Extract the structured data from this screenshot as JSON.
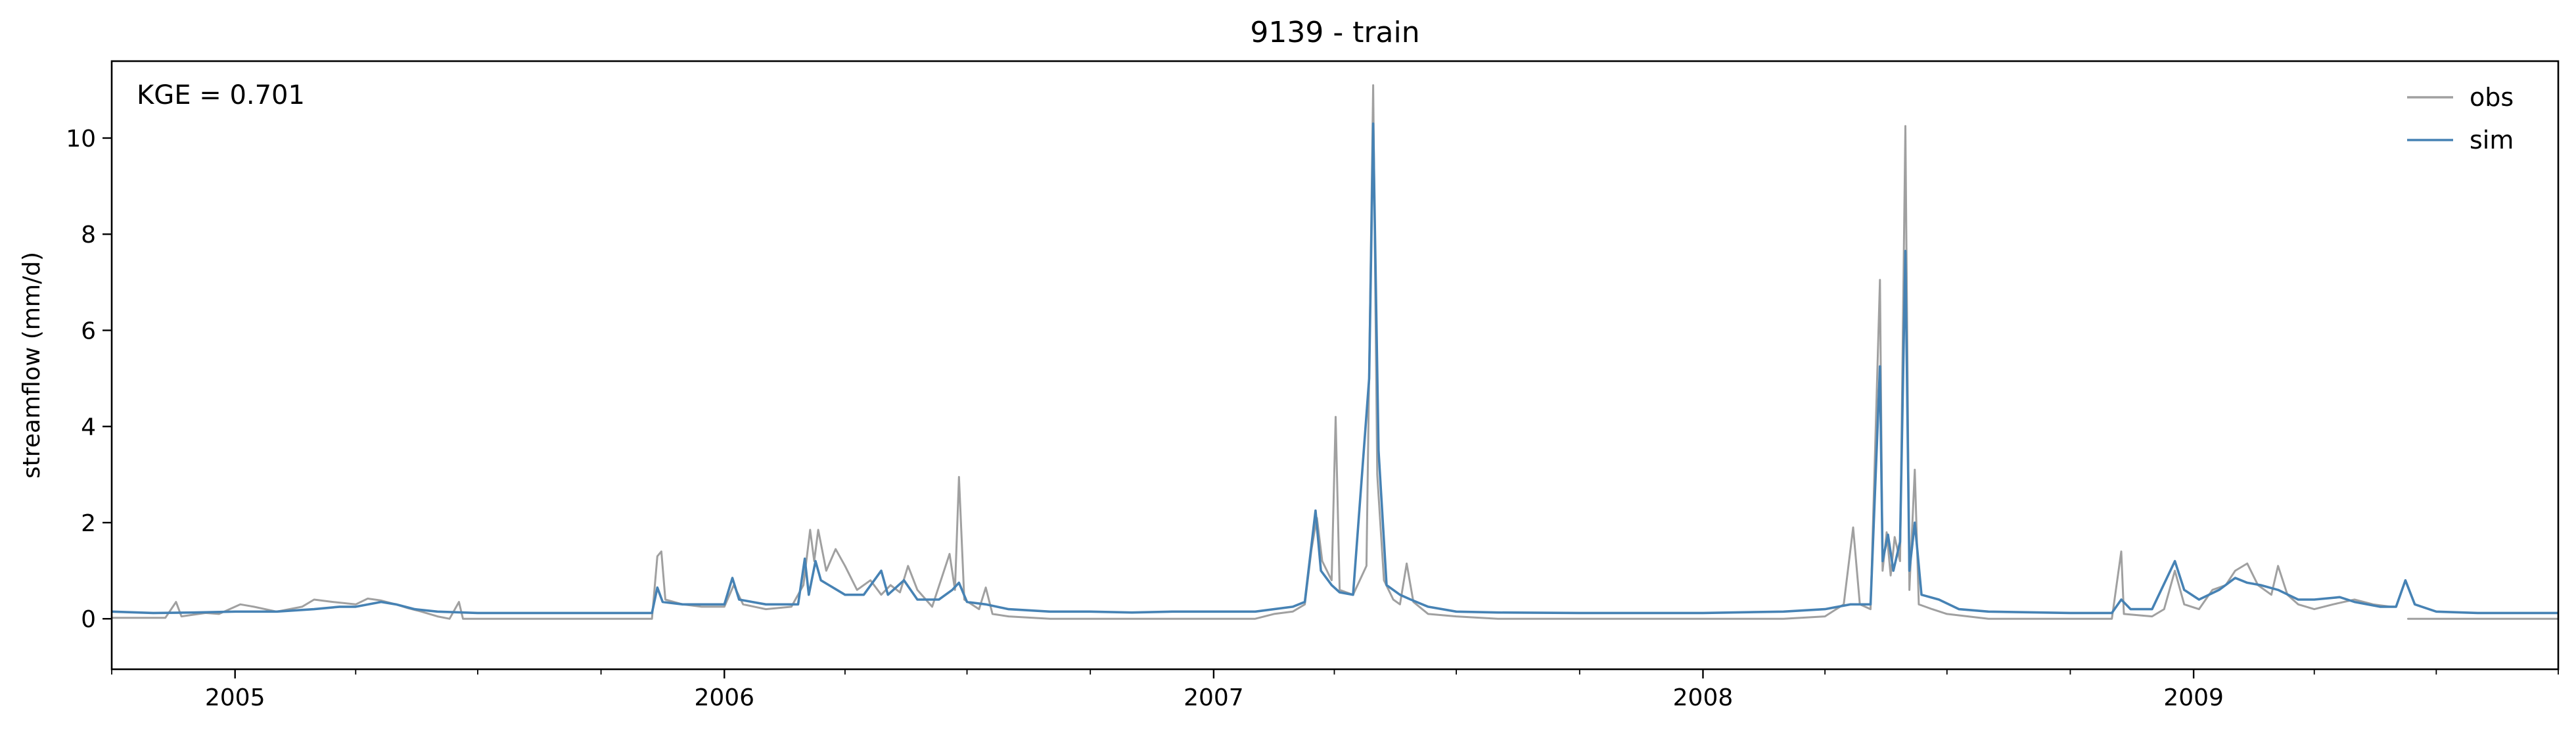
{
  "chart_data": {
    "type": "line",
    "title": "9139 - train",
    "xlabel": "",
    "ylabel": "streamflow (mm/d)",
    "xlim": [
      "2004-10-01",
      "2009-09-30"
    ],
    "ylim": [
      -1.05,
      11.6
    ],
    "yticks": [
      0,
      2,
      4,
      6,
      8,
      10
    ],
    "xticks_major": [
      {
        "date": "2005-01-01",
        "label": "2005"
      },
      {
        "date": "2006-01-01",
        "label": "2006"
      },
      {
        "date": "2007-01-01",
        "label": "2007"
      },
      {
        "date": "2008-01-01",
        "label": "2008"
      },
      {
        "date": "2009-01-01",
        "label": "2009"
      }
    ],
    "xticks_minor": [
      "2004-10-01",
      "2005-04-01",
      "2005-07-01",
      "2005-10-01",
      "2006-04-01",
      "2006-07-01",
      "2006-10-01",
      "2007-04-01",
      "2007-07-01",
      "2007-10-01",
      "2008-04-01",
      "2008-07-01",
      "2008-10-01",
      "2009-04-01",
      "2009-07-01",
      "2009-09-30"
    ],
    "grid": false,
    "legend": "top-right",
    "annotation": "KGE = 0.701",
    "series": [
      {
        "name": "obs",
        "color": "#a0a0a0",
        "points": [
          [
            "2004-10-01",
            0.02
          ],
          [
            "2004-11-10",
            0.02
          ],
          [
            "2004-11-18",
            0.35
          ],
          [
            "2004-11-22",
            0.05
          ],
          [
            "2004-12-10",
            0.12
          ],
          [
            "2004-12-20",
            0.1
          ],
          [
            "2005-01-05",
            0.3
          ],
          [
            "2005-01-15",
            0.25
          ],
          [
            "2005-02-01",
            0.15
          ],
          [
            "2005-02-20",
            0.25
          ],
          [
            "2005-03-01",
            0.4
          ],
          [
            "2005-03-15",
            0.35
          ],
          [
            "2005-04-01",
            0.3
          ],
          [
            "2005-04-10",
            0.42
          ],
          [
            "2005-04-20",
            0.38
          ],
          [
            "2005-05-01",
            0.3
          ],
          [
            "2005-05-10",
            0.22
          ],
          [
            "2005-05-20",
            0.15
          ],
          [
            "2005-06-01",
            0.05
          ],
          [
            "2005-06-10",
            0.0
          ],
          [
            "2005-06-17",
            0.35
          ],
          [
            "2005-06-20",
            0.0
          ],
          [
            "2005-08-01",
            0.0
          ],
          [
            "2005-10-01",
            0.0
          ],
          [
            "2005-11-08",
            0.0
          ],
          [
            "2005-11-12",
            1.3
          ],
          [
            "2005-11-15",
            1.4
          ],
          [
            "2005-11-18",
            0.4
          ],
          [
            "2005-12-01",
            0.3
          ],
          [
            "2005-12-15",
            0.25
          ],
          [
            "2006-01-01",
            0.25
          ],
          [
            "2006-01-08",
            0.7
          ],
          [
            "2006-01-15",
            0.3
          ],
          [
            "2006-02-01",
            0.2
          ],
          [
            "2006-02-20",
            0.25
          ],
          [
            "2006-03-01",
            0.7
          ],
          [
            "2006-03-06",
            1.85
          ],
          [
            "2006-03-09",
            1.2
          ],
          [
            "2006-03-12",
            1.85
          ],
          [
            "2006-03-18",
            1.0
          ],
          [
            "2006-03-25",
            1.45
          ],
          [
            "2006-04-01",
            1.1
          ],
          [
            "2006-04-10",
            0.6
          ],
          [
            "2006-04-20",
            0.8
          ],
          [
            "2006-04-28",
            0.5
          ],
          [
            "2006-05-05",
            0.7
          ],
          [
            "2006-05-12",
            0.55
          ],
          [
            "2006-05-18",
            1.1
          ],
          [
            "2006-05-25",
            0.6
          ],
          [
            "2006-06-05",
            0.25
          ],
          [
            "2006-06-18",
            1.35
          ],
          [
            "2006-06-22",
            0.6
          ],
          [
            "2006-06-25",
            2.95
          ],
          [
            "2006-06-29",
            0.4
          ],
          [
            "2006-07-10",
            0.2
          ],
          [
            "2006-07-15",
            0.65
          ],
          [
            "2006-07-20",
            0.1
          ],
          [
            "2006-08-01",
            0.05
          ],
          [
            "2006-09-01",
            0.0
          ],
          [
            "2006-10-01",
            0.0
          ],
          [
            "2006-11-01",
            0.0
          ],
          [
            "2006-12-01",
            0.0
          ],
          [
            "2007-01-01",
            0.0
          ],
          [
            "2007-02-01",
            0.0
          ],
          [
            "2007-02-15",
            0.1
          ],
          [
            "2007-03-01",
            0.15
          ],
          [
            "2007-03-10",
            0.3
          ],
          [
            "2007-03-15",
            1.45
          ],
          [
            "2007-03-19",
            2.1
          ],
          [
            "2007-03-23",
            1.2
          ],
          [
            "2007-03-30",
            0.8
          ],
          [
            "2007-04-02",
            4.2
          ],
          [
            "2007-04-05",
            0.6
          ],
          [
            "2007-04-15",
            0.5
          ],
          [
            "2007-04-25",
            1.1
          ],
          [
            "2007-04-30",
            11.1
          ],
          [
            "2007-05-03",
            3.0
          ],
          [
            "2007-05-08",
            0.8
          ],
          [
            "2007-05-15",
            0.4
          ],
          [
            "2007-05-20",
            0.3
          ],
          [
            "2007-05-25",
            1.15
          ],
          [
            "2007-05-30",
            0.35
          ],
          [
            "2007-06-10",
            0.1
          ],
          [
            "2007-07-01",
            0.05
          ],
          [
            "2007-08-01",
            0.0
          ],
          [
            "2007-10-01",
            0.0
          ],
          [
            "2008-01-01",
            0.0
          ],
          [
            "2008-03-01",
            0.0
          ],
          [
            "2008-04-01",
            0.05
          ],
          [
            "2008-04-15",
            0.3
          ],
          [
            "2008-04-22",
            1.9
          ],
          [
            "2008-04-27",
            0.3
          ],
          [
            "2008-05-05",
            0.2
          ],
          [
            "2008-05-12",
            7.05
          ],
          [
            "2008-05-14",
            1.0
          ],
          [
            "2008-05-17",
            1.8
          ],
          [
            "2008-05-20",
            0.9
          ],
          [
            "2008-05-23",
            1.7
          ],
          [
            "2008-05-27",
            1.2
          ],
          [
            "2008-05-31",
            10.25
          ],
          [
            "2008-06-03",
            0.6
          ],
          [
            "2008-06-07",
            3.1
          ],
          [
            "2008-06-10",
            0.3
          ],
          [
            "2008-06-20",
            0.2
          ],
          [
            "2008-07-01",
            0.1
          ],
          [
            "2008-08-01",
            0.0
          ],
          [
            "2008-10-01",
            0.0
          ],
          [
            "2008-11-01",
            0.0
          ],
          [
            "2008-11-08",
            1.4
          ],
          [
            "2008-11-10",
            0.1
          ],
          [
            "2008-12-01",
            0.05
          ],
          [
            "2008-12-10",
            0.2
          ],
          [
            "2008-12-18",
            1.0
          ],
          [
            "2008-12-25",
            0.3
          ],
          [
            "2009-01-05",
            0.2
          ],
          [
            "2009-01-15",
            0.6
          ],
          [
            "2009-01-25",
            0.7
          ],
          [
            "2009-02-01",
            1.0
          ],
          [
            "2009-02-10",
            1.15
          ],
          [
            "2009-02-18",
            0.7
          ],
          [
            "2009-02-28",
            0.5
          ],
          [
            "2009-03-05",
            1.1
          ],
          [
            "2009-03-12",
            0.5
          ],
          [
            "2009-03-20",
            0.3
          ],
          [
            "2009-04-01",
            0.2
          ],
          [
            "2009-04-15",
            0.3
          ],
          [
            "2009-05-01",
            0.4
          ],
          [
            "2009-05-15",
            0.3
          ],
          [
            "2009-05-28",
            0.25
          ],
          [
            "2009-06-01",
            null
          ],
          [
            "2009-06-10",
            0.0
          ],
          [
            "2009-07-01",
            0.0
          ],
          [
            "2009-09-30",
            0.0
          ]
        ]
      },
      {
        "name": "sim",
        "color": "#4682b4",
        "points": [
          [
            "2004-10-01",
            0.15
          ],
          [
            "2004-11-01",
            0.12
          ],
          [
            "2004-12-01",
            0.13
          ],
          [
            "2005-01-01",
            0.15
          ],
          [
            "2005-02-01",
            0.15
          ],
          [
            "2005-03-01",
            0.2
          ],
          [
            "2005-03-20",
            0.25
          ],
          [
            "2005-04-01",
            0.25
          ],
          [
            "2005-04-20",
            0.35
          ],
          [
            "2005-05-01",
            0.3
          ],
          [
            "2005-05-15",
            0.2
          ],
          [
            "2005-06-01",
            0.15
          ],
          [
            "2005-07-01",
            0.12
          ],
          [
            "2005-08-01",
            0.12
          ],
          [
            "2005-10-01",
            0.12
          ],
          [
            "2005-11-08",
            0.12
          ],
          [
            "2005-11-12",
            0.65
          ],
          [
            "2005-11-16",
            0.35
          ],
          [
            "2005-12-01",
            0.3
          ],
          [
            "2005-12-20",
            0.3
          ],
          [
            "2006-01-01",
            0.3
          ],
          [
            "2006-01-07",
            0.85
          ],
          [
            "2006-01-12",
            0.4
          ],
          [
            "2006-02-01",
            0.3
          ],
          [
            "2006-02-25",
            0.3
          ],
          [
            "2006-03-02",
            1.25
          ],
          [
            "2006-03-05",
            0.5
          ],
          [
            "2006-03-10",
            1.2
          ],
          [
            "2006-03-14",
            0.8
          ],
          [
            "2006-03-20",
            0.7
          ],
          [
            "2006-04-01",
            0.5
          ],
          [
            "2006-04-15",
            0.5
          ],
          [
            "2006-04-28",
            1.0
          ],
          [
            "2006-05-03",
            0.5
          ],
          [
            "2006-05-15",
            0.8
          ],
          [
            "2006-05-25",
            0.4
          ],
          [
            "2006-06-10",
            0.4
          ],
          [
            "2006-06-20",
            0.6
          ],
          [
            "2006-06-25",
            0.75
          ],
          [
            "2006-07-01",
            0.35
          ],
          [
            "2006-07-15",
            0.3
          ],
          [
            "2006-08-01",
            0.2
          ],
          [
            "2006-09-01",
            0.15
          ],
          [
            "2006-10-01",
            0.15
          ],
          [
            "2006-11-01",
            0.13
          ],
          [
            "2006-12-01",
            0.15
          ],
          [
            "2007-01-01",
            0.15
          ],
          [
            "2007-02-01",
            0.15
          ],
          [
            "2007-03-01",
            0.25
          ],
          [
            "2007-03-10",
            0.35
          ],
          [
            "2007-03-18",
            2.25
          ],
          [
            "2007-03-22",
            1.0
          ],
          [
            "2007-03-30",
            0.7
          ],
          [
            "2007-04-05",
            0.55
          ],
          [
            "2007-04-15",
            0.5
          ],
          [
            "2007-04-27",
            5.0
          ],
          [
            "2007-04-30",
            10.3
          ],
          [
            "2007-05-04",
            3.5
          ],
          [
            "2007-05-10",
            0.7
          ],
          [
            "2007-05-20",
            0.5
          ],
          [
            "2007-05-28",
            0.4
          ],
          [
            "2007-06-10",
            0.25
          ],
          [
            "2007-07-01",
            0.15
          ],
          [
            "2007-08-01",
            0.13
          ],
          [
            "2007-10-01",
            0.12
          ],
          [
            "2008-01-01",
            0.12
          ],
          [
            "2008-03-01",
            0.15
          ],
          [
            "2008-04-01",
            0.2
          ],
          [
            "2008-04-20",
            0.3
          ],
          [
            "2008-05-05",
            0.3
          ],
          [
            "2008-05-12",
            5.25
          ],
          [
            "2008-05-14",
            1.2
          ],
          [
            "2008-05-18",
            1.75
          ],
          [
            "2008-05-22",
            1.0
          ],
          [
            "2008-05-27",
            1.6
          ],
          [
            "2008-05-31",
            7.65
          ],
          [
            "2008-06-03",
            1.0
          ],
          [
            "2008-06-07",
            2.0
          ],
          [
            "2008-06-12",
            0.5
          ],
          [
            "2008-06-25",
            0.4
          ],
          [
            "2008-07-10",
            0.2
          ],
          [
            "2008-08-01",
            0.15
          ],
          [
            "2008-10-01",
            0.12
          ],
          [
            "2008-11-01",
            0.12
          ],
          [
            "2008-11-08",
            0.4
          ],
          [
            "2008-11-15",
            0.2
          ],
          [
            "2008-12-01",
            0.2
          ],
          [
            "2008-12-18",
            1.2
          ],
          [
            "2008-12-25",
            0.6
          ],
          [
            "2009-01-05",
            0.4
          ],
          [
            "2009-01-20",
            0.6
          ],
          [
            "2009-02-01",
            0.85
          ],
          [
            "2009-02-10",
            0.75
          ],
          [
            "2009-02-20",
            0.7
          ],
          [
            "2009-03-05",
            0.6
          ],
          [
            "2009-03-20",
            0.4
          ],
          [
            "2009-04-01",
            0.4
          ],
          [
            "2009-04-20",
            0.45
          ],
          [
            "2009-05-01",
            0.35
          ],
          [
            "2009-05-20",
            0.25
          ],
          [
            "2009-06-01",
            0.25
          ],
          [
            "2009-06-08",
            0.8
          ],
          [
            "2009-06-15",
            0.3
          ],
          [
            "2009-07-01",
            0.15
          ],
          [
            "2009-08-01",
            0.12
          ],
          [
            "2009-09-30",
            0.12
          ]
        ]
      }
    ]
  }
}
